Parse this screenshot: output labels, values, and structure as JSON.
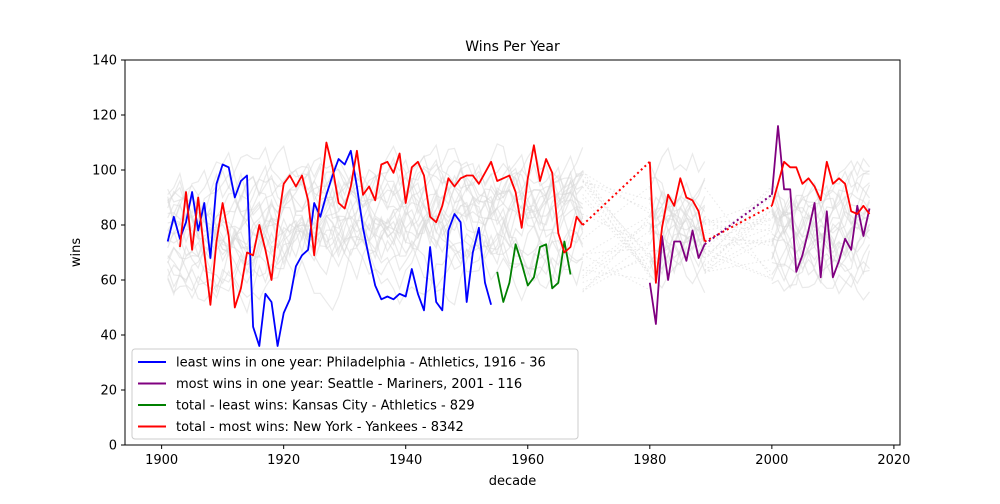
{
  "chart_data": {
    "type": "line",
    "title": "Wins Per Year",
    "xlabel": "decade",
    "ylabel": "wins",
    "xlim": [
      1894,
      2021
    ],
    "ylim": [
      0,
      140
    ],
    "xticks": [
      1900,
      1920,
      1940,
      1960,
      1980,
      2000,
      2020
    ],
    "yticks": [
      0,
      20,
      40,
      60,
      80,
      100,
      120,
      140
    ],
    "grid": false,
    "legend_position": "lower-left",
    "colors": {
      "least_year": "#0000ff",
      "most_year": "#800080",
      "least_total": "#008000",
      "most_total": "#ff0000",
      "background_teams": "#d9d9d9"
    },
    "series": [
      {
        "name": "least wins in one year: Philadelphia - Athletics, 1916 - 36",
        "color": "#0000ff",
        "x": [
          1901,
          1902,
          1903,
          1904,
          1905,
          1906,
          1907,
          1908,
          1909,
          1910,
          1911,
          1912,
          1913,
          1914,
          1915,
          1916,
          1917,
          1918,
          1919,
          1920,
          1921,
          1922,
          1923,
          1924,
          1925,
          1926,
          1927,
          1928,
          1929,
          1930,
          1931,
          1932,
          1933,
          1934,
          1935,
          1936,
          1937,
          1938,
          1939,
          1940,
          1941,
          1942,
          1943,
          1944,
          1945,
          1946,
          1947,
          1948,
          1949,
          1950,
          1951,
          1952,
          1953,
          1954
        ],
        "y": [
          74,
          83,
          75,
          81,
          92,
          78,
          88,
          68,
          95,
          102,
          101,
          90,
          96,
          98,
          43,
          36,
          55,
          52,
          36,
          48,
          53,
          65,
          69,
          71,
          88,
          83,
          91,
          98,
          104,
          102,
          107,
          94,
          79,
          68,
          58,
          53,
          54,
          53,
          55,
          54,
          64,
          55,
          49,
          72,
          52,
          49,
          78,
          84,
          81,
          52,
          70,
          79,
          59,
          51
        ]
      },
      {
        "name": "most wins in one year: Seattle - Mariners, 2001 - 116",
        "color": "#800080",
        "x": [
          1980,
          1981,
          1982,
          1983,
          1984,
          1985,
          1986,
          1987,
          1988,
          1989,
          2000,
          2001,
          2002,
          2003,
          2004,
          2005,
          2006,
          2007,
          2008,
          2009,
          2010,
          2011,
          2012,
          2013,
          2014,
          2015,
          2016
        ],
        "y": [
          59,
          44,
          76,
          60,
          74,
          74,
          67,
          78,
          68,
          73,
          91,
          116,
          93,
          93,
          63,
          69,
          78,
          88,
          61,
          85,
          61,
          67,
          75,
          71,
          87,
          76,
          86
        ]
      },
      {
        "name": "total - least wins: Kansas City - Athletics - 829",
        "color": "#008000",
        "x": [
          1955,
          1956,
          1957,
          1958,
          1959,
          1960,
          1961,
          1962,
          1963,
          1964,
          1965,
          1966,
          1967
        ],
        "y": [
          63,
          52,
          59,
          73,
          66,
          58,
          61,
          72,
          73,
          57,
          59,
          74,
          62
        ]
      },
      {
        "name": "total - most wins: New York - Yankees - 8342",
        "color": "#ff0000",
        "x": [
          1903,
          1904,
          1905,
          1906,
          1907,
          1908,
          1909,
          1910,
          1911,
          1912,
          1913,
          1914,
          1915,
          1916,
          1917,
          1918,
          1919,
          1920,
          1921,
          1922,
          1923,
          1924,
          1925,
          1926,
          1927,
          1928,
          1929,
          1930,
          1931,
          1932,
          1933,
          1934,
          1935,
          1936,
          1937,
          1938,
          1939,
          1940,
          1941,
          1942,
          1943,
          1944,
          1945,
          1946,
          1947,
          1948,
          1949,
          1950,
          1951,
          1952,
          1953,
          1954,
          1955,
          1956,
          1957,
          1958,
          1959,
          1960,
          1961,
          1962,
          1963,
          1964,
          1965,
          1966,
          1967,
          1968,
          1969,
          1980,
          1981,
          1982,
          1983,
          1984,
          1985,
          1986,
          1987,
          1988,
          1989,
          2000,
          2001,
          2002,
          2003,
          2004,
          2005,
          2006,
          2007,
          2008,
          2009,
          2010,
          2011,
          2012,
          2013,
          2014,
          2015,
          2016
        ],
        "y": [
          72,
          92,
          71,
          90,
          70,
          51,
          74,
          88,
          76,
          50,
          57,
          70,
          69,
          80,
          71,
          60,
          80,
          95,
          98,
          94,
          98,
          89,
          69,
          91,
          110,
          101,
          88,
          86,
          94,
          107,
          91,
          94,
          89,
          102,
          103,
          99,
          106,
          88,
          101,
          103,
          98,
          83,
          81,
          87,
          97,
          94,
          97,
          98,
          98,
          95,
          99,
          103,
          96,
          97,
          98,
          92,
          79,
          97,
          109,
          96,
          104,
          99,
          77,
          70,
          72,
          83,
          80,
          103,
          59,
          79,
          91,
          87,
          97,
          90,
          89,
          85,
          74,
          87,
          95,
          103,
          101,
          101,
          95,
          97,
          94,
          89,
          103,
          95,
          97,
          95,
          85,
          84,
          87,
          84
        ]
      }
    ],
    "gap_connectors": [
      {
        "color": "#ff0000",
        "from": [
          1969,
          80
        ],
        "to": [
          1980,
          103
        ]
      },
      {
        "color": "#ff0000",
        "from": [
          1989,
          74
        ],
        "to": [
          2000,
          87
        ]
      },
      {
        "color": "#800080",
        "from": [
          1989,
          73
        ],
        "to": [
          2000,
          91
        ]
      }
    ],
    "background_note": "many other teams drawn as faint light-gray lines"
  }
}
